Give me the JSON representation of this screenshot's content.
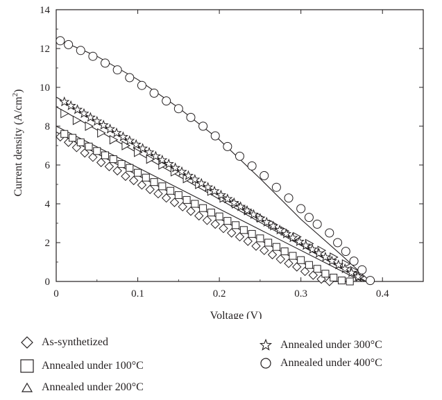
{
  "chart_data": {
    "type": "scatter",
    "xlabel": "Voltage (V)",
    "ylabel": "Current density (A/cm²)",
    "ylabel_parts": {
      "main": "Current density (A/cm",
      "sup": "2",
      "tail": ")"
    },
    "xlim": [
      0,
      0.45
    ],
    "ylim": [
      0,
      14
    ],
    "xticks": [
      0,
      0.1,
      0.2,
      0.3,
      0.4
    ],
    "xtick_labels": [
      "0",
      "0.1",
      "0.2",
      "0.3",
      "0.4"
    ],
    "yticks": [
      0,
      2,
      4,
      6,
      8,
      10,
      12,
      14
    ],
    "ytick_labels": [
      "0",
      "2",
      "4",
      "6",
      "8",
      "10",
      "12",
      "14"
    ],
    "grid": false,
    "legend_position": "bottom",
    "series": [
      {
        "name": "As-synthetized",
        "marker": "diamond",
        "fit": {
          "x0": 0.0,
          "y0": 7.7,
          "x1": 0.345,
          "y1": 0.0
        },
        "points": [
          [
            0.005,
            7.45
          ],
          [
            0.015,
            7.17
          ],
          [
            0.025,
            6.9
          ],
          [
            0.035,
            6.62
          ],
          [
            0.045,
            6.4
          ],
          [
            0.055,
            6.13
          ],
          [
            0.065,
            5.92
          ],
          [
            0.075,
            5.7
          ],
          [
            0.085,
            5.42
          ],
          [
            0.095,
            5.2
          ],
          [
            0.105,
            4.97
          ],
          [
            0.115,
            4.74
          ],
          [
            0.125,
            4.52
          ],
          [
            0.135,
            4.3
          ],
          [
            0.145,
            4.07
          ],
          [
            0.155,
            3.85
          ],
          [
            0.165,
            3.62
          ],
          [
            0.175,
            3.38
          ],
          [
            0.185,
            3.15
          ],
          [
            0.195,
            2.95
          ],
          [
            0.205,
            2.73
          ],
          [
            0.215,
            2.5
          ],
          [
            0.225,
            2.3
          ],
          [
            0.235,
            2.07
          ],
          [
            0.245,
            1.82
          ],
          [
            0.255,
            1.6
          ],
          [
            0.265,
            1.38
          ],
          [
            0.275,
            1.15
          ],
          [
            0.285,
            0.93
          ],
          [
            0.295,
            0.75
          ],
          [
            0.305,
            0.52
          ],
          [
            0.315,
            0.32
          ],
          [
            0.325,
            0.12
          ],
          [
            0.335,
            0.0
          ]
        ]
      },
      {
        "name": "Annealed under 100°C",
        "marker": "square",
        "fit": {
          "x0": 0.0,
          "y0": 8.0,
          "x1": 0.375,
          "y1": 0.0
        },
        "points": [
          [
            0.01,
            7.6
          ],
          [
            0.02,
            7.4
          ],
          [
            0.03,
            7.17
          ],
          [
            0.04,
            6.95
          ],
          [
            0.05,
            6.72
          ],
          [
            0.06,
            6.5
          ],
          [
            0.07,
            6.3
          ],
          [
            0.08,
            6.05
          ],
          [
            0.09,
            5.85
          ],
          [
            0.1,
            5.6
          ],
          [
            0.11,
            5.35
          ],
          [
            0.12,
            5.12
          ],
          [
            0.13,
            4.9
          ],
          [
            0.14,
            4.67
          ],
          [
            0.15,
            4.45
          ],
          [
            0.16,
            4.2
          ],
          [
            0.17,
            4.0
          ],
          [
            0.18,
            3.78
          ],
          [
            0.19,
            3.55
          ],
          [
            0.2,
            3.35
          ],
          [
            0.21,
            3.12
          ],
          [
            0.22,
            2.9
          ],
          [
            0.23,
            2.65
          ],
          [
            0.24,
            2.45
          ],
          [
            0.25,
            2.22
          ],
          [
            0.26,
            2.0
          ],
          [
            0.27,
            1.78
          ],
          [
            0.28,
            1.55
          ],
          [
            0.29,
            1.32
          ],
          [
            0.3,
            1.1
          ],
          [
            0.31,
            0.85
          ],
          [
            0.32,
            0.65
          ],
          [
            0.33,
            0.4
          ],
          [
            0.34,
            0.2
          ],
          [
            0.35,
            0.05
          ],
          [
            0.36,
            0.0
          ]
        ]
      },
      {
        "name": "Annealed under 200°C",
        "marker": "triangle",
        "fit": {
          "x0": 0.0,
          "y0": 9.0,
          "x1": 0.378,
          "y1": 0.0
        },
        "points": [
          [
            0.01,
            8.65
          ],
          [
            0.025,
            8.3
          ],
          [
            0.04,
            8.0
          ],
          [
            0.055,
            7.65
          ],
          [
            0.07,
            7.3
          ],
          [
            0.085,
            7.0
          ],
          [
            0.1,
            6.65
          ],
          [
            0.115,
            6.3
          ],
          [
            0.13,
            6.0
          ],
          [
            0.145,
            5.65
          ],
          [
            0.16,
            5.3
          ],
          [
            0.175,
            5.0
          ],
          [
            0.19,
            4.65
          ],
          [
            0.205,
            4.3
          ],
          [
            0.22,
            4.0
          ],
          [
            0.235,
            3.65
          ],
          [
            0.25,
            3.3
          ],
          [
            0.265,
            2.95
          ],
          [
            0.28,
            2.6
          ],
          [
            0.295,
            2.3
          ],
          [
            0.31,
            1.95
          ],
          [
            0.325,
            1.6
          ],
          [
            0.34,
            1.25
          ],
          [
            0.355,
            0.9
          ],
          [
            0.365,
            0.55
          ],
          [
            0.372,
            0.25
          ]
        ]
      },
      {
        "name": "Annealed under 300°C",
        "marker": "star",
        "fit": {
          "x0": 0.0,
          "y0": 9.5,
          "x1": 0.38,
          "y1": 0.0
        },
        "points": [
          [
            0.01,
            9.25
          ],
          [
            0.018,
            9.05
          ],
          [
            0.026,
            8.85
          ],
          [
            0.034,
            8.65
          ],
          [
            0.042,
            8.45
          ],
          [
            0.05,
            8.25
          ],
          [
            0.058,
            8.05
          ],
          [
            0.066,
            7.85
          ],
          [
            0.074,
            7.65
          ],
          [
            0.082,
            7.45
          ],
          [
            0.09,
            7.25
          ],
          [
            0.098,
            7.05
          ],
          [
            0.106,
            6.85
          ],
          [
            0.114,
            6.65
          ],
          [
            0.122,
            6.45
          ],
          [
            0.13,
            6.25
          ],
          [
            0.138,
            6.05
          ],
          [
            0.146,
            5.85
          ],
          [
            0.154,
            5.65
          ],
          [
            0.162,
            5.45
          ],
          [
            0.17,
            5.25
          ],
          [
            0.178,
            5.05
          ],
          [
            0.186,
            4.85
          ],
          [
            0.194,
            4.65
          ],
          [
            0.202,
            4.45
          ],
          [
            0.21,
            4.25
          ],
          [
            0.218,
            4.05
          ],
          [
            0.226,
            3.85
          ],
          [
            0.234,
            3.65
          ],
          [
            0.242,
            3.45
          ],
          [
            0.25,
            3.25
          ],
          [
            0.258,
            3.05
          ],
          [
            0.266,
            2.85
          ],
          [
            0.274,
            2.65
          ],
          [
            0.282,
            2.45
          ],
          [
            0.29,
            2.25
          ],
          [
            0.298,
            2.05
          ],
          [
            0.306,
            1.85
          ],
          [
            0.314,
            1.65
          ],
          [
            0.322,
            1.45
          ],
          [
            0.33,
            1.25
          ],
          [
            0.338,
            1.05
          ],
          [
            0.346,
            0.85
          ],
          [
            0.354,
            0.65
          ],
          [
            0.362,
            0.45
          ],
          [
            0.37,
            0.25
          ]
        ]
      },
      {
        "name": "Annealed under 400°C",
        "marker": "circle",
        "curve": [
          [
            0.0,
            12.5
          ],
          [
            0.05,
            11.6
          ],
          [
            0.1,
            10.4
          ],
          [
            0.15,
            8.95
          ],
          [
            0.2,
            7.3
          ],
          [
            0.25,
            5.3
          ],
          [
            0.3,
            3.2
          ],
          [
            0.35,
            1.35
          ],
          [
            0.385,
            0.0
          ]
        ],
        "points": [
          [
            0.005,
            12.4
          ],
          [
            0.015,
            12.2
          ],
          [
            0.03,
            11.9
          ],
          [
            0.045,
            11.6
          ],
          [
            0.06,
            11.25
          ],
          [
            0.075,
            10.9
          ],
          [
            0.09,
            10.5
          ],
          [
            0.105,
            10.1
          ],
          [
            0.12,
            9.7
          ],
          [
            0.135,
            9.3
          ],
          [
            0.15,
            8.9
          ],
          [
            0.165,
            8.45
          ],
          [
            0.18,
            8.0
          ],
          [
            0.195,
            7.5
          ],
          [
            0.21,
            6.95
          ],
          [
            0.225,
            6.45
          ],
          [
            0.24,
            5.95
          ],
          [
            0.255,
            5.45
          ],
          [
            0.27,
            4.85
          ],
          [
            0.285,
            4.3
          ],
          [
            0.3,
            3.75
          ],
          [
            0.31,
            3.3
          ],
          [
            0.32,
            2.95
          ],
          [
            0.335,
            2.5
          ],
          [
            0.345,
            2.0
          ],
          [
            0.355,
            1.55
          ],
          [
            0.365,
            1.05
          ],
          [
            0.375,
            0.6
          ],
          [
            0.385,
            0.05
          ]
        ]
      }
    ]
  },
  "legend": {
    "items": [
      {
        "label": "As-synthetized",
        "marker": "diamond"
      },
      {
        "label": "Annealed under 100°C",
        "marker": "square"
      },
      {
        "label": "Annealed under 200°C",
        "marker": "triangle"
      },
      {
        "label": "Annealed under 300°C",
        "marker": "star"
      },
      {
        "label": "Annealed under 400°C",
        "marker": "circle"
      }
    ]
  },
  "colors": {
    "ink": "#231f20",
    "background": "#ffffff"
  }
}
